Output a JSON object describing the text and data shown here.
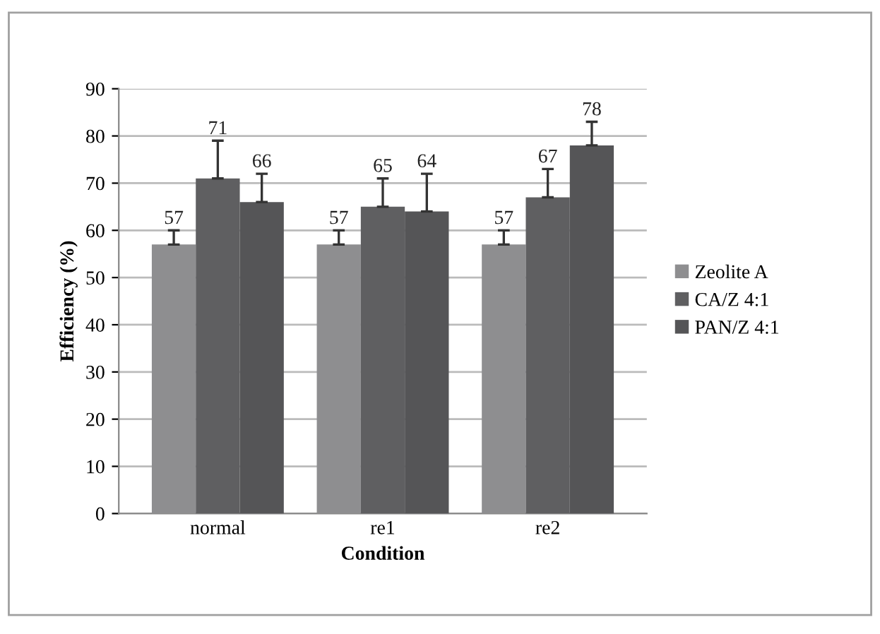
{
  "chart_data": {
    "type": "bar",
    "xlabel": "Condition",
    "ylabel": "Efficiency (%)",
    "categories": [
      "normal",
      "re1",
      "re2"
    ],
    "series": [
      {
        "name": "Zeolite A",
        "color": "#8e8e90",
        "values": [
          57,
          57,
          57
        ],
        "errors": [
          [
            57,
            60
          ],
          [
            57,
            60
          ],
          [
            57,
            60
          ]
        ]
      },
      {
        "name": "CA/Z 4:1",
        "color": "#5f5f61",
        "values": [
          71,
          65,
          67
        ],
        "errors": [
          [
            71,
            79
          ],
          [
            65,
            71
          ],
          [
            67,
            73
          ]
        ]
      },
      {
        "name": "PAN/Z 4:1",
        "color": "#555557",
        "values": [
          66,
          64,
          78
        ],
        "errors": [
          [
            66,
            72
          ],
          [
            64,
            72
          ],
          [
            78,
            83
          ]
        ]
      }
    ],
    "ylim": [
      0,
      90
    ],
    "yticks": [
      0,
      10,
      20,
      30,
      40,
      50,
      60,
      70,
      80,
      90
    ],
    "grid": "y",
    "legend": "right",
    "data_labels": true
  }
}
